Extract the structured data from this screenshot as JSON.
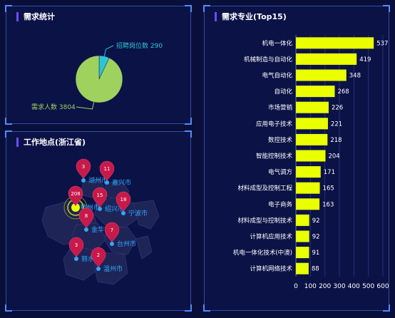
{
  "panels": {
    "demand": {
      "title": "需求统计"
    },
    "location": {
      "title": "工作地点(浙江省)"
    },
    "majors": {
      "title": "需求专业(Top15)"
    }
  },
  "chart_data": [
    {
      "type": "pie",
      "title": "需求统计",
      "slices": [
        {
          "label": "招聘岗位数",
          "value": 290,
          "color": "#2ec4d6"
        },
        {
          "label": "需求人数",
          "value": 3804,
          "color": "#9fd15e"
        }
      ]
    },
    {
      "type": "map",
      "title": "工作地点(浙江省)",
      "points": [
        {
          "city": "湖州市",
          "value": 3
        },
        {
          "city": "嘉兴市",
          "value": 11
        },
        {
          "city": "杭州市",
          "value": 208
        },
        {
          "city": "绍兴市",
          "value": 15
        },
        {
          "city": "宁波市",
          "value": 18
        },
        {
          "city": "金华市",
          "value": 8
        },
        {
          "city": "台州市",
          "value": 7
        },
        {
          "city": "丽水市",
          "value": 3
        },
        {
          "city": "温州市",
          "value": 2
        }
      ]
    },
    {
      "type": "bar",
      "orientation": "horizontal",
      "title": "需求专业(Top15)",
      "categories": [
        "机电一体化",
        "机械制造与自动化",
        "电气自动化",
        "自动化",
        "市场营销",
        "应用电子技术",
        "数控技术",
        "智能控制技术",
        "电气调方",
        "材料成型及控制工程",
        "电子商务",
        "材料成型与控制技术",
        "计算机应用技术",
        "机电一体化技术(中澳)",
        "计算机网络技术"
      ],
      "values": [
        537,
        419,
        348,
        268,
        226,
        221,
        218,
        204,
        171,
        165,
        163,
        92,
        92,
        91,
        88
      ],
      "xlim": [
        0,
        600
      ],
      "xticks": [
        0,
        100,
        200,
        300,
        400,
        500,
        600
      ],
      "bar_color": "#eaff00",
      "grid": true
    }
  ]
}
